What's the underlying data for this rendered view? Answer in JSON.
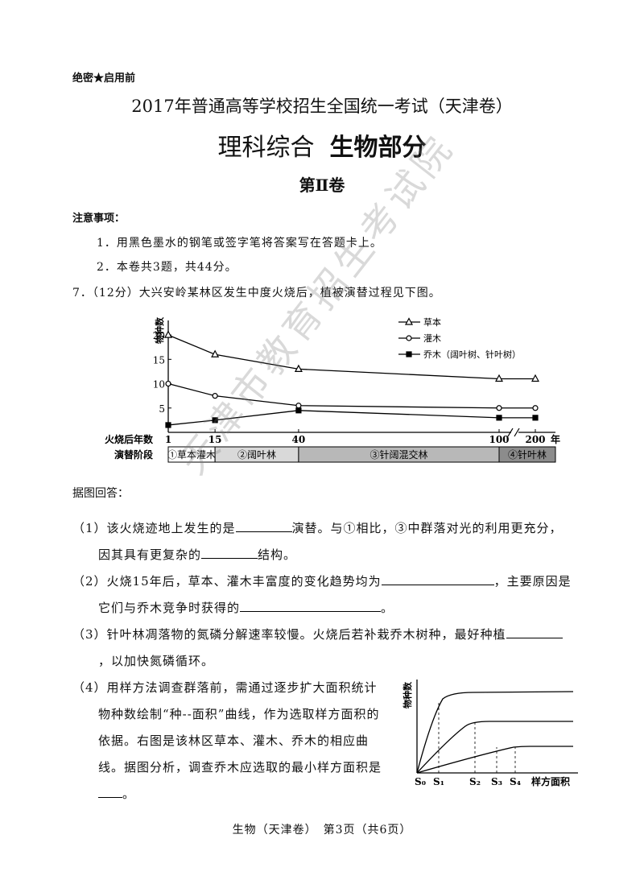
{
  "header": {
    "secret": "绝密★启用前",
    "title": "2017年普通高等学校招生全国统一考试（天津卷）",
    "subject": "理科综合",
    "part": "生物部分",
    "volume": "第Ⅱ卷"
  },
  "notes": {
    "title": "注意事项：",
    "items": [
      "1．用黑色墨水的钢笔或签字笔将答案写在答题卡上。",
      "2．本卷共3题，共44分。"
    ]
  },
  "question": {
    "stem": "7．（12分）大兴安岭某林区发生中度火烧后，植被演替过程见下图。",
    "prompt": "据图回答：",
    "subquestions": [
      {
        "parts": [
          "（1）该火烧迹地上发生的是",
          "演替。与①相比，③中群落对光的利用更充分，因其具有更复杂的",
          "结构。"
        ]
      },
      {
        "parts": [
          "（2）火烧15年后，草本、灌木丰富度的变化趋势均为",
          "，主要原因是它们与乔木竞争时获得的",
          "。"
        ]
      },
      {
        "parts": [
          "（3）针叶林凋落物的氮磷分解速率较慢。火烧后若补栽乔木树种，最好种植",
          "，以加快氮磷循环。"
        ]
      },
      {
        "parts": [
          "（4）用样方法调查群落前，需通过逐步扩大面积统计物种数绘制“种--面积”曲线，作为选取样方面积的依据。右图是该林区草本、灌木、乔木的相应曲线。据图分析，调查乔木应选取的最小样方面积是",
          "。"
        ]
      }
    ]
  },
  "chart_data": {
    "type": "line",
    "y_label": "物种数",
    "x_label": "火烧后年数",
    "x_unit": "年",
    "x": [
      1,
      15,
      40,
      100,
      200
    ],
    "xlim": [
      1,
      200
    ],
    "xticks": [
      1,
      15,
      40,
      100,
      200
    ],
    "axis_break": true,
    "ylim": [
      0,
      22
    ],
    "yticks": [
      5,
      10,
      15,
      20
    ],
    "series": [
      {
        "name": "草本",
        "marker": "triangle",
        "color": "#000000",
        "values": [
          20,
          16,
          13,
          11,
          11
        ]
      },
      {
        "name": "灌木",
        "marker": "circle",
        "color": "#000000",
        "values": [
          10,
          7.5,
          5.5,
          5,
          5
        ]
      },
      {
        "name": "乔木（阔叶树、针叶树）",
        "marker": "square",
        "color": "#000000",
        "values": [
          1.5,
          2.5,
          4.5,
          3,
          3
        ]
      }
    ],
    "stage_label": "演替阶段",
    "stages": [
      {
        "name": "①草本灌木",
        "color": "#ffffff"
      },
      {
        "name": "②阔叶林",
        "color": "#d9d9d9"
      },
      {
        "name": "③针阔混交林",
        "color": "#b8b8b8"
      },
      {
        "name": "④针叶林",
        "color": "#8c8c8c"
      }
    ]
  },
  "area_chart": {
    "y_label": "物种数",
    "x_label": "样方面积",
    "ticks": [
      "S₀",
      "S₁",
      "S₂",
      "S₃",
      "S₄"
    ]
  },
  "watermark": "天津市教育招生考试院",
  "footer": "生物（天津卷）　第3页（共6页）"
}
